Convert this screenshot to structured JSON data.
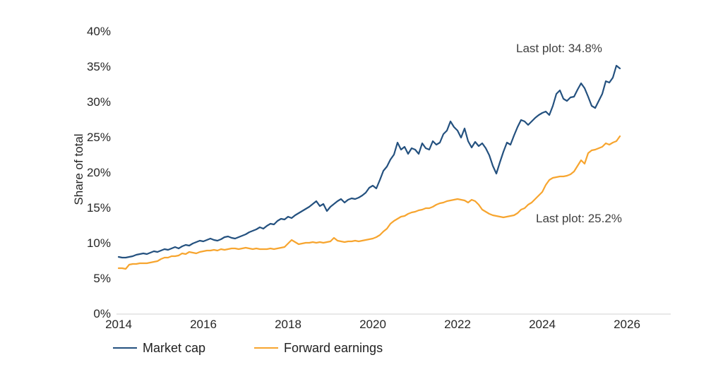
{
  "figure": {
    "y_axis_title": "Share of total",
    "colors": {
      "market_cap": "#24517F",
      "forward_earnings": "#F7A52F",
      "axis_line": "#D9D9D9",
      "tick_text": "#262626",
      "annotation_text": "#404040"
    }
  },
  "chart_data": {
    "type": "line",
    "title": "",
    "xlabel": "",
    "ylabel": "Share of total",
    "grid": false,
    "legend_position": "bottom",
    "x_start_year": 2014,
    "points_per_year": 12,
    "x_end_label": "Nov 2025",
    "xlim": [
      2014,
      2027
    ],
    "ylim": [
      0,
      40
    ],
    "x_ticks": [
      2014,
      2016,
      2018,
      2020,
      2022,
      2024,
      2026
    ],
    "y_ticks": [
      {
        "value": 0,
        "label": "0%"
      },
      {
        "value": 5,
        "label": "5%"
      },
      {
        "value": 10,
        "label": "10%"
      },
      {
        "value": 15,
        "label": "15%"
      },
      {
        "value": 20,
        "label": "20%"
      },
      {
        "value": 25,
        "label": "25%"
      },
      {
        "value": 30,
        "label": "30%"
      },
      {
        "value": 35,
        "label": "35%"
      },
      {
        "value": 40,
        "label": "40%"
      }
    ],
    "series": [
      {
        "name": "Market cap",
        "color": "#24517F",
        "last_value": 34.8,
        "last_label": "Last plot: 34.8%",
        "values": [
          8.1,
          8.0,
          8.0,
          8.1,
          8.2,
          8.4,
          8.5,
          8.6,
          8.5,
          8.7,
          8.9,
          8.8,
          9.0,
          9.2,
          9.1,
          9.3,
          9.5,
          9.3,
          9.6,
          9.8,
          9.7,
          10.0,
          10.2,
          10.4,
          10.3,
          10.5,
          10.7,
          10.5,
          10.4,
          10.6,
          10.9,
          11.0,
          10.8,
          10.7,
          10.9,
          11.1,
          11.3,
          11.6,
          11.8,
          12.0,
          12.3,
          12.1,
          12.5,
          12.8,
          12.7,
          13.2,
          13.5,
          13.4,
          13.8,
          13.6,
          14.0,
          14.3,
          14.6,
          14.9,
          15.2,
          15.6,
          16.0,
          15.3,
          15.6,
          14.6,
          15.2,
          15.6,
          16.0,
          16.3,
          15.8,
          16.2,
          16.4,
          16.3,
          16.5,
          16.8,
          17.2,
          17.9,
          18.2,
          17.8,
          19.0,
          20.3,
          20.9,
          21.9,
          22.6,
          24.3,
          23.3,
          23.7,
          22.7,
          23.5,
          23.3,
          22.7,
          24.2,
          23.5,
          23.3,
          24.5,
          24.0,
          24.3,
          25.5,
          26.0,
          27.3,
          26.5,
          26.0,
          25.0,
          26.3,
          24.5,
          23.6,
          24.4,
          23.8,
          24.2,
          23.5,
          22.5,
          21.0,
          19.9,
          21.5,
          23.0,
          24.3,
          24.0,
          25.3,
          26.5,
          27.5,
          27.3,
          26.8,
          27.3,
          27.8,
          28.2,
          28.5,
          28.7,
          28.2,
          29.5,
          31.2,
          31.7,
          30.5,
          30.2,
          30.7,
          30.8,
          31.8,
          32.7,
          32.0,
          30.8,
          29.5,
          29.2,
          30.2,
          31.2,
          33.0,
          32.8,
          33.5,
          35.2,
          34.8
        ]
      },
      {
        "name": "Forward earnings",
        "color": "#F7A52F",
        "last_value": 25.2,
        "last_label": "Last plot: 25.2%",
        "values": [
          6.5,
          6.5,
          6.4,
          7.0,
          7.1,
          7.1,
          7.2,
          7.2,
          7.2,
          7.3,
          7.4,
          7.5,
          7.8,
          8.0,
          8.0,
          8.2,
          8.2,
          8.3,
          8.6,
          8.5,
          8.8,
          8.7,
          8.6,
          8.8,
          8.9,
          9.0,
          9.0,
          9.1,
          9.0,
          9.2,
          9.1,
          9.2,
          9.3,
          9.3,
          9.2,
          9.3,
          9.4,
          9.3,
          9.2,
          9.3,
          9.2,
          9.2,
          9.2,
          9.3,
          9.2,
          9.3,
          9.4,
          9.5,
          10.0,
          10.5,
          10.2,
          9.9,
          10.0,
          10.1,
          10.1,
          10.2,
          10.1,
          10.2,
          10.1,
          10.2,
          10.3,
          10.8,
          10.4,
          10.3,
          10.2,
          10.3,
          10.3,
          10.4,
          10.3,
          10.4,
          10.5,
          10.6,
          10.7,
          10.9,
          11.2,
          11.7,
          12.1,
          12.8,
          13.2,
          13.5,
          13.8,
          13.9,
          14.2,
          14.4,
          14.5,
          14.7,
          14.8,
          15.0,
          15.0,
          15.2,
          15.5,
          15.7,
          15.8,
          16.0,
          16.1,
          16.2,
          16.3,
          16.2,
          16.1,
          15.8,
          16.2,
          16.0,
          15.5,
          14.8,
          14.5,
          14.2,
          14.0,
          13.9,
          13.8,
          13.7,
          13.8,
          13.9,
          14.0,
          14.3,
          14.8,
          15.0,
          15.5,
          15.8,
          16.3,
          16.8,
          17.3,
          18.3,
          19.0,
          19.3,
          19.4,
          19.5,
          19.5,
          19.6,
          19.8,
          20.2,
          21.0,
          21.8,
          21.3,
          22.8,
          23.2,
          23.3,
          23.5,
          23.7,
          24.2,
          24.0,
          24.3,
          24.5,
          25.2
        ]
      }
    ]
  }
}
